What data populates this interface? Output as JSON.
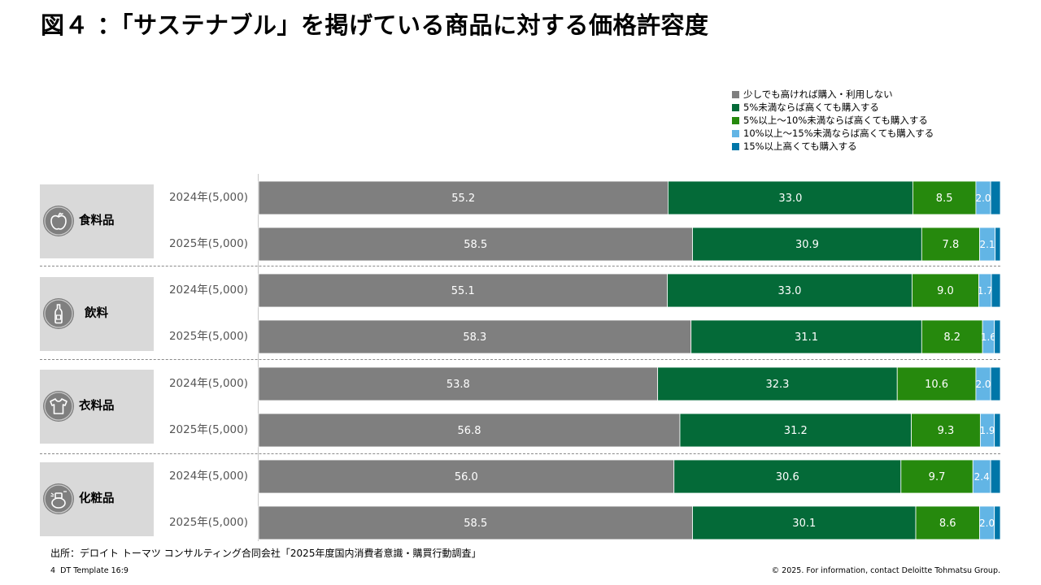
{
  "title": "図４ ：「サステナブル」を掲げている商品に対する価格許容度",
  "colors": {
    "gray": "#7f7f7f",
    "dark_green": "#046a38",
    "green": "#26890d",
    "light_blue": "#62b5e5",
    "blue": "#0076a8",
    "category_bg": "#d9d9d9"
  },
  "chart_data": {
    "type": "bar",
    "orientation": "horizontal",
    "stacked": true,
    "xlim": [
      0,
      100
    ],
    "legend_position": "top-right",
    "legend": [
      "少しでも高ければ購入・利用しない",
      "5%未満ならば高くても購入する",
      "5%以上～10%未満ならば高くても購入する",
      "10%以上～15%未満ならば高くても購入する",
      "15%以上高くても購入する"
    ],
    "categories": [
      {
        "name": "食料品",
        "icon": "apple-icon",
        "rows": [
          {
            "label": "2024年(5,000)",
            "values": [
              55.2,
              33.0,
              8.5,
              2.0,
              1.3
            ],
            "labels": [
              "55.2",
              "33.0",
              "8.5",
              "2.0",
              ""
            ]
          },
          {
            "label": "2025年(5,000)",
            "values": [
              58.5,
              30.9,
              7.8,
              2.1,
              0.7
            ],
            "labels": [
              "58.5",
              "30.9",
              "7.8",
              "2.1",
              ""
            ]
          }
        ]
      },
      {
        "name": "飲料",
        "icon": "bottle-icon",
        "rows": [
          {
            "label": "2024年(5,000)",
            "values": [
              55.1,
              33.0,
              9.0,
              1.7,
              1.2
            ],
            "labels": [
              "55.1",
              "33.0",
              "9.0",
              "1.7",
              ""
            ]
          },
          {
            "label": "2025年(5,000)",
            "values": [
              58.3,
              31.1,
              8.2,
              1.6,
              0.8
            ],
            "labels": [
              "58.3",
              "31.1",
              "8.2",
              "1.6",
              ""
            ]
          }
        ]
      },
      {
        "name": "衣料品",
        "icon": "tshirt-icon",
        "rows": [
          {
            "label": "2024年(5,000)",
            "values": [
              53.8,
              32.3,
              10.6,
              2.0,
              1.3
            ],
            "labels": [
              "53.8",
              "32.3",
              "10.6",
              "2.0",
              ""
            ]
          },
          {
            "label": "2025年(5,000)",
            "values": [
              56.8,
              31.2,
              9.3,
              1.9,
              0.8
            ],
            "labels": [
              "56.8",
              "31.2",
              "9.3",
              "1.9",
              ""
            ]
          }
        ]
      },
      {
        "name": "化粧品",
        "icon": "cosmetics-icon",
        "rows": [
          {
            "label": "2024年(5,000)",
            "values": [
              56.0,
              30.6,
              9.7,
              2.4,
              1.3
            ],
            "labels": [
              "56.0",
              "30.6",
              "9.7",
              "2.4",
              ""
            ]
          },
          {
            "label": "2025年(5,000)",
            "values": [
              58.5,
              30.1,
              8.6,
              2.0,
              0.8
            ],
            "labels": [
              "58.5",
              "30.1",
              "8.6",
              "2.0",
              ""
            ]
          }
        ]
      }
    ]
  },
  "source": "出所：デロイト トーマツ コンサルティング合同会社「2025年度国内消費者意識・購買行動調査」",
  "footer": {
    "page_number": "4",
    "template": "DT Template 16:9",
    "copyright": "© 2025. For information, contact Deloitte Tohmatsu Group."
  }
}
